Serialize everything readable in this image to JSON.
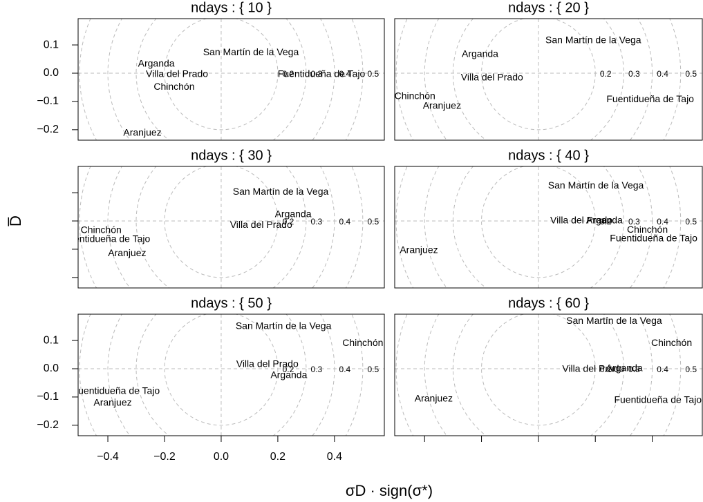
{
  "x_label": "σD · sign(σ*)",
  "y_label": "D̅",
  "chart_data": [
    {
      "type": "scatter",
      "title": "ndays : { 10 }",
      "xlim": [
        -0.505,
        0.576
      ],
      "ylim": [
        -0.237,
        0.193
      ],
      "yticks": [
        0.1,
        {
          "value": 0,
          "label": "0.0"
        },
        {
          "value": -0.1,
          "label": "−0.1"
        },
        {
          "value": -0.2,
          "label": "−0.2"
        }
      ],
      "y_tick_labels": true,
      "rings": [
        0.2,
        0.3,
        0.4,
        0.5
      ],
      "labels": [
        "San Martín de la Vega",
        "Arganda",
        "Villa del Prado",
        "Chinchón",
        "Aranjuez",
        "Fuentidueña de Tajo"
      ],
      "x": [
        0.105,
        -0.229,
        -0.156,
        -0.166,
        -0.278,
        0.354
      ],
      "y": [
        0.073,
        0.032,
        -0.005,
        -0.049,
        -0.212,
        -0.005
      ]
    },
    {
      "type": "scatter",
      "title": "ndays : { 20 }",
      "xlim": [
        -0.505,
        0.576
      ],
      "ylim": [
        -0.237,
        0.193
      ],
      "rings": [
        0.2,
        0.3,
        0.4,
        0.5
      ],
      "labels": [
        "San Martín de la Vega",
        "Arganda",
        "Villa del Prado",
        "Chinchón",
        "Aranjuez",
        "Fuentidueña de Tajo"
      ],
      "x": [
        0.193,
        -0.205,
        -0.163,
        -0.434,
        -0.339,
        0.393
      ],
      "y": [
        0.115,
        0.066,
        -0.017,
        -0.083,
        -0.117,
        -0.093
      ]
    },
    {
      "type": "scatter",
      "title": "ndays : { 30 }",
      "xlim": [
        -0.505,
        0.576
      ],
      "ylim": [
        -0.237,
        0.193
      ],
      "yticks": [
        0.1,
        0,
        -0.1,
        -0.2
      ],
      "y_tick_labels": false,
      "rings": [
        0.2,
        0.3,
        0.4,
        0.5
      ],
      "labels": [
        "San Martín de la Vega",
        "Arganda",
        "Villa del Prado",
        "Chinchón",
        "Fuentidueña de Tajo",
        "Aranjuez"
      ],
      "x": [
        0.21,
        0.254,
        0.141,
        -0.424,
        -0.405,
        -0.332
      ],
      "y": [
        0.102,
        0.022,
        -0.015,
        -0.034,
        -0.066,
        -0.115
      ]
    },
    {
      "type": "scatter",
      "title": "ndays : { 40 }",
      "xlim": [
        -0.505,
        0.576
      ],
      "ylim": [
        -0.237,
        0.193
      ],
      "rings": [
        0.2,
        0.3,
        0.4,
        0.5
      ],
      "labels": [
        "San Martín de la Vega",
        "Villa del Prado",
        "Arganda",
        "Chinchón",
        "Fuentidueña de Tajo",
        "Aranjuez"
      ],
      "x": [
        0.202,
        0.151,
        0.232,
        0.383,
        0.405,
        -0.42
      ],
      "y": [
        0.124,
        0.0,
        0.0,
        -0.032,
        -0.063,
        -0.105
      ]
    },
    {
      "type": "scatter",
      "title": "ndays : { 50 }",
      "xlim": [
        -0.505,
        0.576
      ],
      "ylim": [
        -0.237,
        0.193
      ],
      "yticks": [
        0.1,
        {
          "value": 0,
          "label": "0.0"
        },
        {
          "value": -0.1,
          "label": "−0.1"
        },
        {
          "value": -0.2,
          "label": "−0.2"
        }
      ],
      "y_tick_labels": true,
      "xticks": [
        {
          "value": -0.4,
          "label": "−0.4"
        },
        {
          "value": -0.2,
          "label": "−0.2"
        },
        {
          "value": 0,
          "label": "0.0"
        },
        0.2,
        0.4
      ],
      "x_tick_labels": true,
      "rings": [
        0.2,
        0.3,
        0.4,
        0.5
      ],
      "labels": [
        "San Martín de la Vega",
        "Chinchón",
        "Villa del Prado",
        "Arganda",
        "Fuentidueña de Tajo",
        "Aranjuez"
      ],
      "x": [
        0.22,
        0.5,
        0.163,
        0.239,
        -0.371,
        -0.383
      ],
      "y": [
        0.149,
        0.09,
        0.015,
        -0.024,
        -0.08,
        -0.122
      ]
    },
    {
      "type": "scatter",
      "title": "ndays : { 60 }",
      "xlim": [
        -0.505,
        0.576
      ],
      "ylim": [
        -0.237,
        0.193
      ],
      "xticks": [
        -0.4,
        -0.2,
        0,
        0.2,
        0.4
      ],
      "x_tick_labels": false,
      "rings": [
        0.2,
        0.3,
        0.4,
        0.5
      ],
      "labels": [
        "San Martín de la Vega",
        "Chinchón",
        "Villa del Prado",
        "Arganda",
        "Fuentidueña de Tajo",
        "Aranjuez"
      ],
      "x": [
        0.266,
        0.468,
        0.193,
        0.302,
        0.42,
        -0.368
      ],
      "y": [
        0.168,
        0.09,
        -0.002,
        0.0,
        -0.112,
        -0.107
      ]
    }
  ]
}
